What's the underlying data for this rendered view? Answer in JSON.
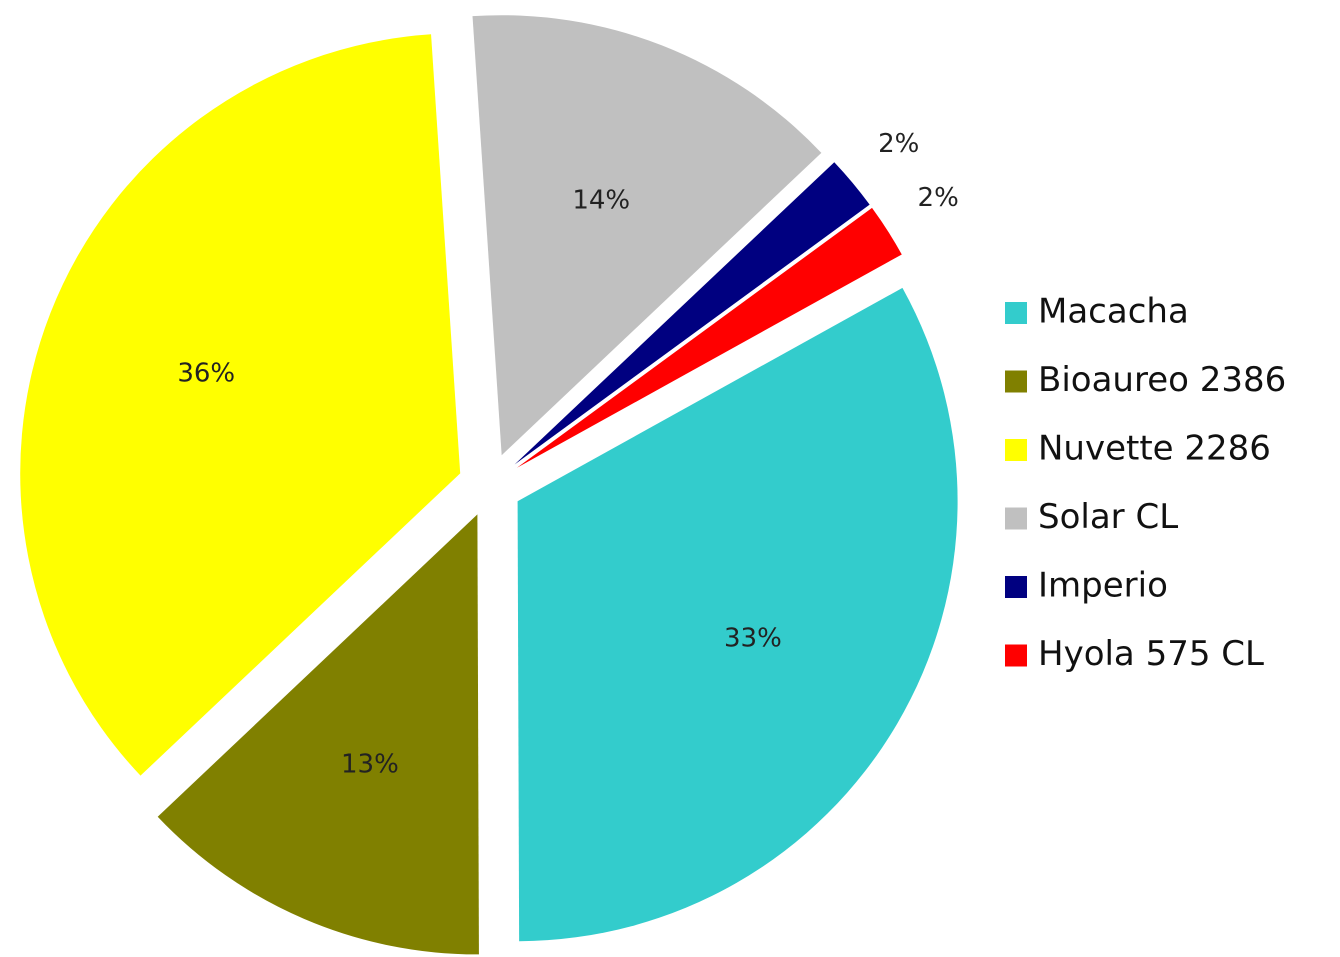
{
  "chart_data": {
    "type": "pie",
    "categories": [
      "Macacha",
      "Bioaureo 2386",
      "Nuvette 2286",
      "Solar CL",
      "Imperio",
      "Hyola 575 CL"
    ],
    "values": [
      33,
      13,
      36,
      14,
      2,
      2
    ],
    "value_labels": [
      "33%",
      "13%",
      "36%",
      "14%",
      "2%",
      "2%"
    ],
    "colors": [
      "#33cccc",
      "#808000",
      "#ffff00",
      "#c0c0c0",
      "#000080",
      "#ff0000"
    ],
    "legend": "right"
  }
}
